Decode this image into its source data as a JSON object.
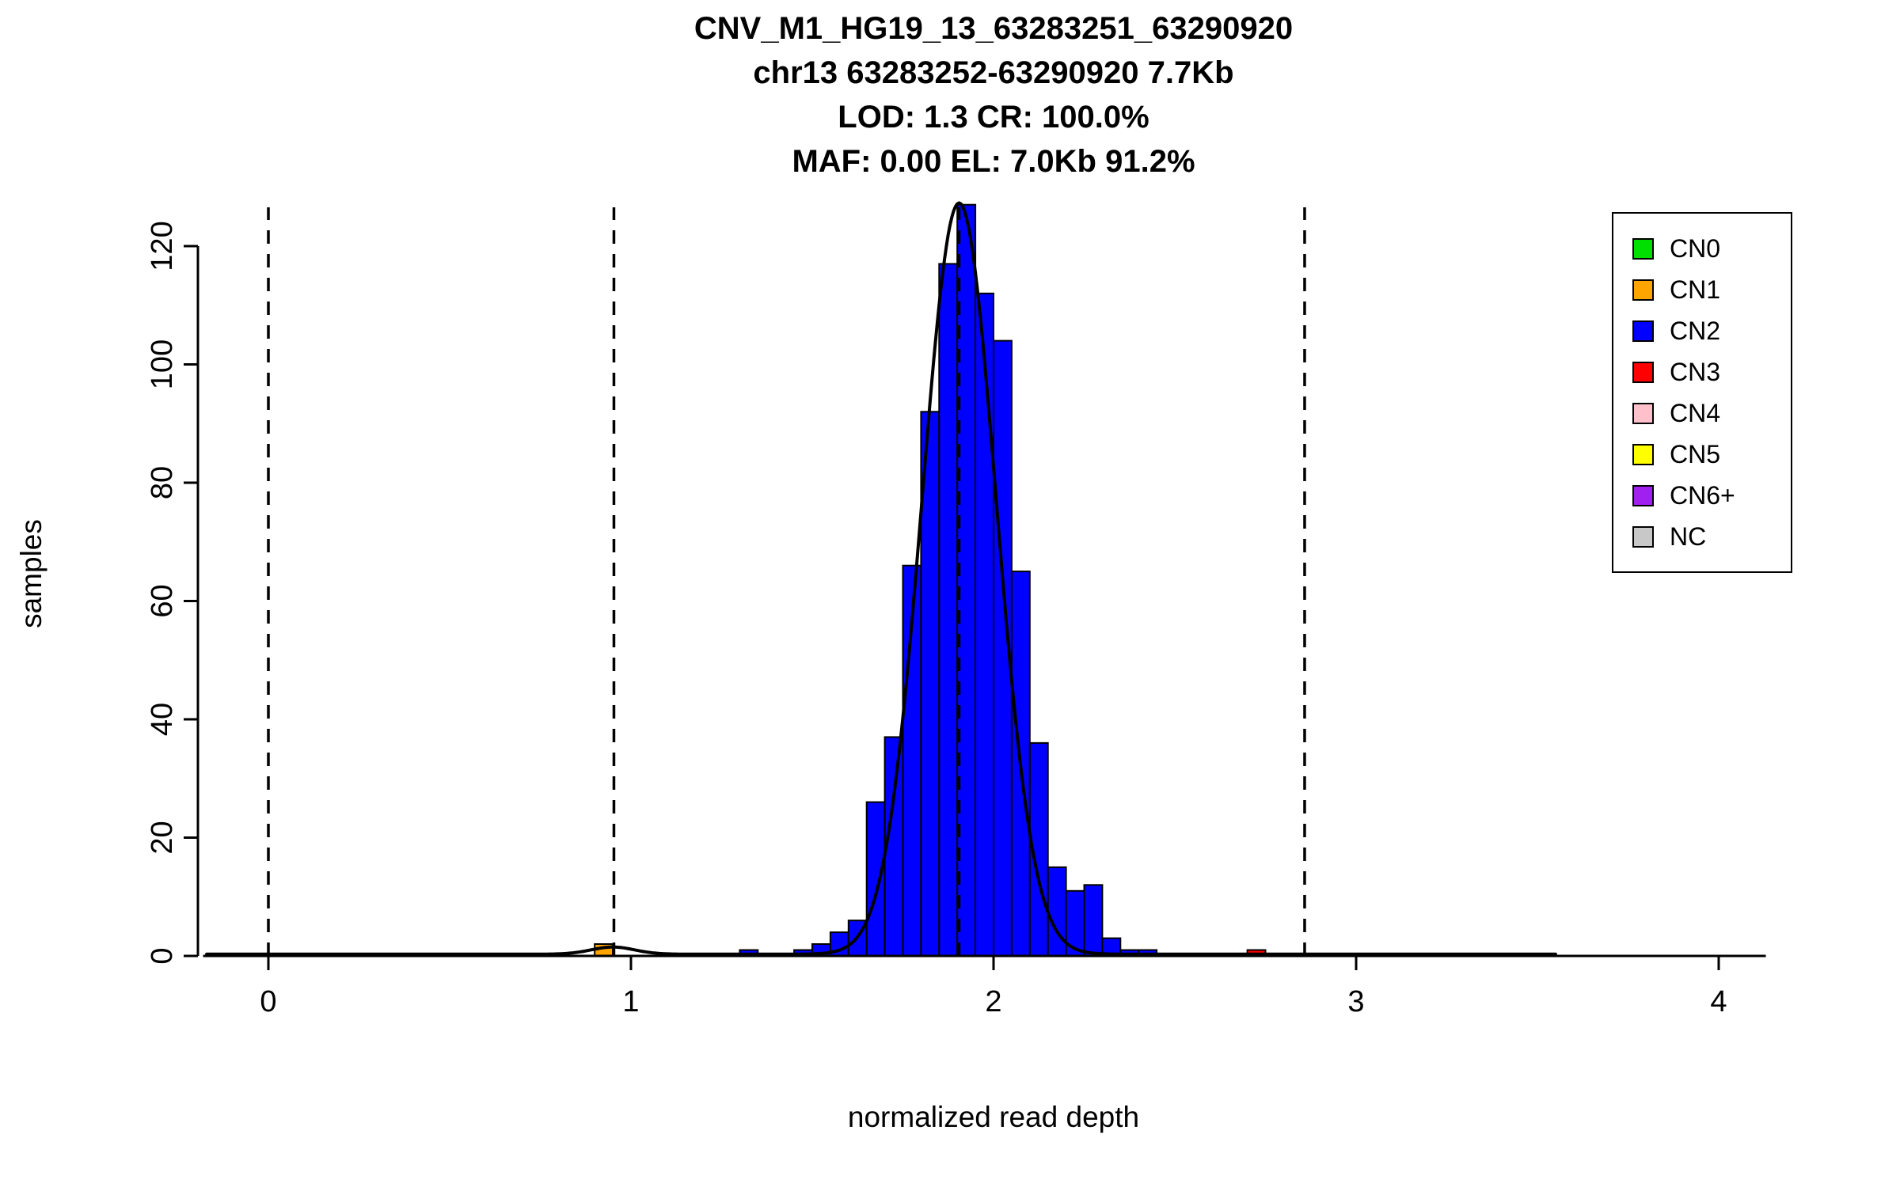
{
  "chart_data": {
    "type": "bar",
    "titles": [
      "CNV_M1_HG19_13_63283251_63290920",
      "chr13 63283252-63290920 7.7Kb",
      "LOD: 1.3 CR: 100.0%",
      "MAF: 0.00 EL: 7.0Kb 91.2%"
    ],
    "xlabel": "normalized read depth",
    "ylabel": "samples",
    "xlim": [
      -0.18,
      4.13
    ],
    "ylim": [
      0,
      128
    ],
    "x_ticks": [
      0,
      1,
      2,
      3,
      4
    ],
    "y_ticks": [
      0,
      20,
      40,
      60,
      80,
      100,
      120
    ],
    "bin_width": 0.05,
    "bars": [
      {
        "x": 0.9,
        "count": 2,
        "cn": "CN1"
      },
      {
        "x": 1.3,
        "count": 1,
        "cn": "CN2"
      },
      {
        "x": 1.45,
        "count": 1,
        "cn": "CN2"
      },
      {
        "x": 1.5,
        "count": 2,
        "cn": "CN2"
      },
      {
        "x": 1.55,
        "count": 4,
        "cn": "CN2"
      },
      {
        "x": 1.6,
        "count": 6,
        "cn": "CN2"
      },
      {
        "x": 1.65,
        "count": 26,
        "cn": "CN2"
      },
      {
        "x": 1.7,
        "count": 37,
        "cn": "CN2"
      },
      {
        "x": 1.75,
        "count": 66,
        "cn": "CN2"
      },
      {
        "x": 1.8,
        "count": 92,
        "cn": "CN2"
      },
      {
        "x": 1.85,
        "count": 117,
        "cn": "CN2"
      },
      {
        "x": 1.9,
        "count": 127,
        "cn": "CN2"
      },
      {
        "x": 1.95,
        "count": 112,
        "cn": "CN2"
      },
      {
        "x": 2.0,
        "count": 104,
        "cn": "CN2"
      },
      {
        "x": 2.05,
        "count": 65,
        "cn": "CN2"
      },
      {
        "x": 2.1,
        "count": 36,
        "cn": "CN2"
      },
      {
        "x": 2.15,
        "count": 15,
        "cn": "CN2"
      },
      {
        "x": 2.2,
        "count": 11,
        "cn": "CN2"
      },
      {
        "x": 2.25,
        "count": 12,
        "cn": "CN2"
      },
      {
        "x": 2.3,
        "count": 3,
        "cn": "CN2"
      },
      {
        "x": 2.35,
        "count": 1,
        "cn": "CN2"
      },
      {
        "x": 2.4,
        "count": 1,
        "cn": "CN2"
      },
      {
        "x": 2.7,
        "count": 1,
        "cn": "CN3"
      }
    ],
    "dashed_lines_x": [
      0.0,
      0.953,
      1.905,
      2.858
    ],
    "fit_curve": {
      "baseline": 0.3,
      "range": [
        -0.17,
        3.55
      ],
      "components": [
        {
          "amplitude": 127,
          "mean": 1.905,
          "sd": 0.102
        },
        {
          "amplitude": 1.2,
          "mean": 0.95,
          "sd": 0.06
        }
      ]
    },
    "legend": [
      {
        "label": "CN0",
        "color": "#00E000"
      },
      {
        "label": "CN1",
        "color": "#FFA500"
      },
      {
        "label": "CN2",
        "color": "#0000FF"
      },
      {
        "label": "CN3",
        "color": "#FF0000"
      },
      {
        "label": "CN4",
        "color": "#FFC0CB"
      },
      {
        "label": "CN5",
        "color": "#FFFF00"
      },
      {
        "label": "CN6+",
        "color": "#A020F0"
      },
      {
        "label": "NC",
        "color": "#C8C8C8"
      }
    ],
    "legend_position": "top-right",
    "grid": false
  }
}
